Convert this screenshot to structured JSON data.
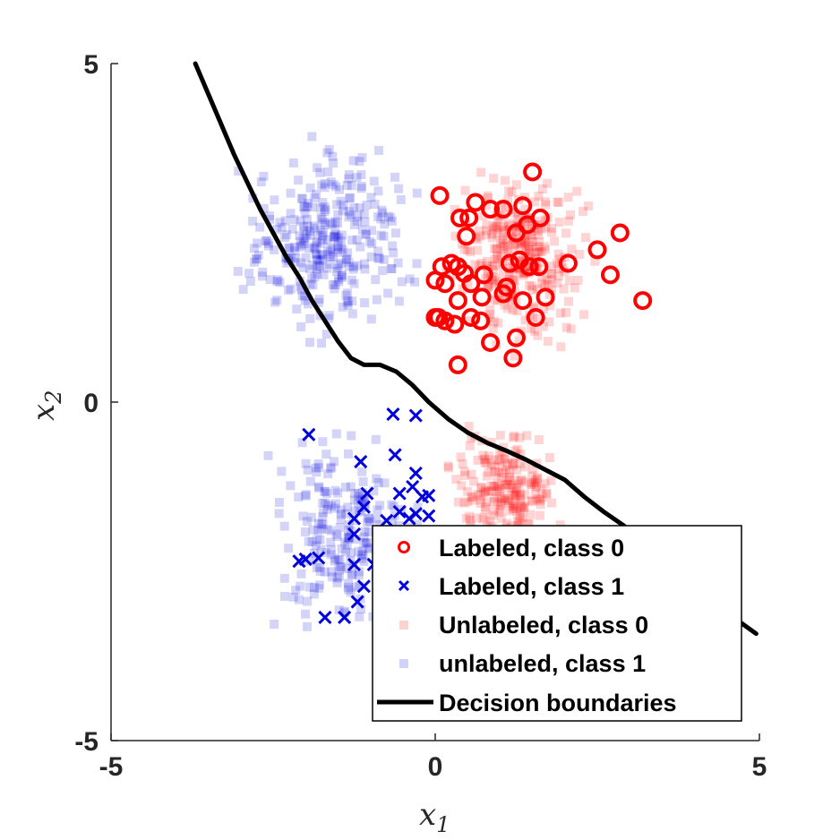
{
  "chart_data": {
    "type": "scatter",
    "title": "",
    "xlabel": "x",
    "xlabel_sub": "1",
    "ylabel": "x",
    "ylabel_sub": "2",
    "xlim": [
      -5,
      5
    ],
    "ylim": [
      -5,
      5
    ],
    "xticks": [
      "-5",
      "0",
      "5"
    ],
    "yticks": [
      "5",
      "0",
      "-5"
    ],
    "grid": false,
    "legend_position": "bottom-right",
    "colors": {
      "class0": "#ff0000",
      "class1": "#0000dd",
      "boundary": "#000000"
    },
    "series": [
      {
        "name": "Labeled, class 0",
        "marker": "circle",
        "points": [
          [
            0.07,
            3.05
          ],
          [
            1.5,
            3.4
          ],
          [
            0.62,
            2.95
          ],
          [
            0.85,
            2.85
          ],
          [
            1.05,
            2.85
          ],
          [
            1.35,
            2.9
          ],
          [
            0.38,
            2.72
          ],
          [
            0.52,
            2.72
          ],
          [
            1.62,
            2.72
          ],
          [
            1.42,
            2.62
          ],
          [
            1.25,
            2.5
          ],
          [
            0.48,
            2.45
          ],
          [
            2.85,
            2.5
          ],
          [
            2.5,
            2.25
          ],
          [
            1.3,
            2.1
          ],
          [
            1.15,
            2.05
          ],
          [
            0.25,
            2.05
          ],
          [
            0.45,
            1.9
          ],
          [
            0.75,
            1.88
          ],
          [
            1.45,
            2.0
          ],
          [
            1.6,
            2.0
          ],
          [
            2.05,
            2.05
          ],
          [
            0.1,
            2.0
          ],
          [
            0.35,
            2.0
          ],
          [
            0.55,
            1.75
          ],
          [
            0.15,
            1.75
          ],
          [
            0.0,
            1.8
          ],
          [
            1.1,
            1.7
          ],
          [
            1.05,
            1.6
          ],
          [
            0.72,
            1.55
          ],
          [
            0.35,
            1.5
          ],
          [
            1.35,
            1.5
          ],
          [
            1.7,
            1.55
          ],
          [
            2.7,
            1.88
          ],
          [
            3.2,
            1.5
          ],
          [
            0.55,
            1.25
          ],
          [
            0.0,
            1.25
          ],
          [
            0.15,
            1.2
          ],
          [
            0.3,
            1.15
          ],
          [
            0.7,
            1.2
          ],
          [
            1.55,
            1.25
          ],
          [
            1.25,
            0.95
          ],
          [
            0.85,
            0.88
          ],
          [
            1.2,
            0.65
          ],
          [
            0.35,
            0.55
          ],
          [
            0.05,
            1.25
          ]
        ]
      },
      {
        "name": "Labeled, class 1",
        "marker": "x",
        "points": [
          [
            -0.65,
            -0.18
          ],
          [
            -0.3,
            -0.2
          ],
          [
            -1.95,
            -0.48
          ],
          [
            -1.15,
            -0.88
          ],
          [
            -0.62,
            -0.78
          ],
          [
            -0.3,
            -1.05
          ],
          [
            -0.35,
            -1.25
          ],
          [
            -0.1,
            -1.38
          ],
          [
            -0.2,
            -1.4
          ],
          [
            -0.55,
            -1.35
          ],
          [
            -1.05,
            -1.35
          ],
          [
            -1.1,
            -1.55
          ],
          [
            -0.3,
            -1.65
          ],
          [
            -0.1,
            -1.68
          ],
          [
            -0.55,
            -1.62
          ],
          [
            -0.75,
            -1.75
          ],
          [
            -0.4,
            -1.72
          ],
          [
            -1.25,
            -1.72
          ],
          [
            -1.25,
            -1.95
          ],
          [
            -1.25,
            -2.4
          ],
          [
            -0.95,
            -2.4
          ],
          [
            -1.8,
            -2.3
          ],
          [
            -2.0,
            -2.32
          ],
          [
            -2.1,
            -2.35
          ],
          [
            -1.1,
            -2.72
          ],
          [
            -1.2,
            -2.95
          ],
          [
            -1.4,
            -3.18
          ],
          [
            -1.7,
            -3.18
          ],
          [
            -0.75,
            -2.35
          ]
        ]
      },
      {
        "name": "Unlabeled, class 0",
        "marker": "square",
        "clusters": [
          {
            "count": 300,
            "xmin": 0.0,
            "xmax": 2.6,
            "ymin": 0.6,
            "ymax": 3.7
          },
          {
            "count": 210,
            "xmin": 0.0,
            "xmax": 2.1,
            "ymin": -2.5,
            "ymax": -0.2
          }
        ]
      },
      {
        "name": "unlabeled, class 1",
        "marker": "square",
        "clusters": [
          {
            "count": 300,
            "xmin": -3.3,
            "xmax": 0.0,
            "ymin": 0.6,
            "ymax": 4.2
          },
          {
            "count": 210,
            "xmin": -2.8,
            "xmax": 0.0,
            "ymin": -3.8,
            "ymax": -0.1
          }
        ]
      },
      {
        "name": "Decision boundaries",
        "marker": "line",
        "points": [
          [
            -3.7,
            5.0
          ],
          [
            -3.5,
            4.55
          ],
          [
            -3.3,
            4.1
          ],
          [
            -3.1,
            3.65
          ],
          [
            -2.9,
            3.25
          ],
          [
            -2.7,
            2.85
          ],
          [
            -2.5,
            2.5
          ],
          [
            -2.3,
            2.15
          ],
          [
            -2.1,
            1.85
          ],
          [
            -1.9,
            1.5
          ],
          [
            -1.7,
            1.2
          ],
          [
            -1.5,
            0.9
          ],
          [
            -1.3,
            0.65
          ],
          [
            -1.1,
            0.55
          ],
          [
            -0.85,
            0.55
          ],
          [
            -0.6,
            0.45
          ],
          [
            -0.35,
            0.25
          ],
          [
            -0.1,
            0.0
          ],
          [
            0.2,
            -0.25
          ],
          [
            0.5,
            -0.45
          ],
          [
            0.8,
            -0.6
          ],
          [
            1.1,
            -0.72
          ],
          [
            1.4,
            -0.85
          ],
          [
            1.7,
            -1.0
          ],
          [
            2.0,
            -1.15
          ],
          [
            2.3,
            -1.4
          ],
          [
            2.6,
            -1.62
          ],
          [
            2.9,
            -1.82
          ],
          [
            3.2,
            -2.05
          ],
          [
            3.5,
            -2.3
          ],
          [
            3.8,
            -2.55
          ],
          [
            4.1,
            -2.8
          ],
          [
            4.4,
            -3.05
          ],
          [
            4.7,
            -3.25
          ],
          [
            4.95,
            -3.42
          ]
        ]
      }
    ]
  }
}
